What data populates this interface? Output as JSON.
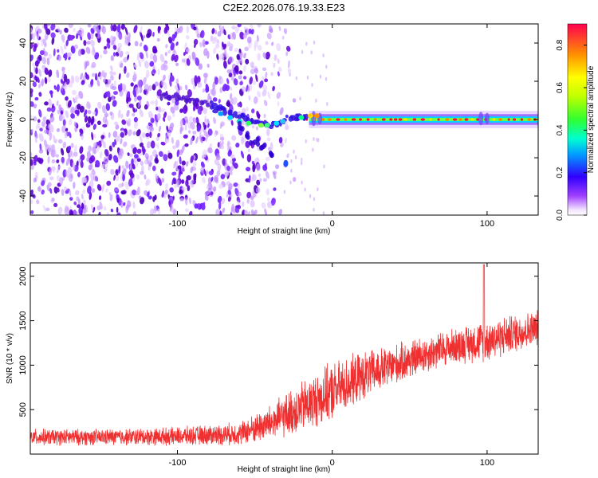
{
  "title": "C2E2.2026.076.19.33.E23",
  "colors": {
    "snr_line": "#f03030",
    "spectrogram_low": "#cc99ff",
    "spectrogram_mid": "#6600dd",
    "signal_peak": "#ff0040"
  },
  "chart_data": [
    {
      "type": "heatmap",
      "title": "C2E2.2026.076.19.33.E23",
      "xlabel": "Height of straight line (km)",
      "ylabel": "Frequency (Hz)",
      "xlim": [
        -195,
        133
      ],
      "ylim": [
        -50,
        50
      ],
      "xticks": [
        -100,
        0,
        100
      ],
      "yticks": [
        -40,
        -20,
        0,
        20,
        40
      ],
      "colorbar": {
        "label": "Normalized spectral amplitude",
        "range": [
          0,
          0.9
        ],
        "ticks": [
          0.0,
          0.2,
          0.4,
          0.6,
          0.8
        ],
        "tick_labels": [
          "0.0",
          "0.2",
          "0.4",
          "0.6",
          "0.8"
        ]
      },
      "features": {
        "noise_region_x": [
          -195,
          -32
        ],
        "noise_fade_x": [
          -60,
          -30
        ],
        "signal_track": {
          "x": [
            -110,
            -95,
            -85,
            -75,
            -65,
            -57,
            -50,
            -44,
            -40,
            -35,
            -30,
            -25,
            -20,
            -15,
            -10,
            0,
            20,
            50,
            90,
            133
          ],
          "frequency": [
            12,
            11,
            9,
            6,
            3,
            1,
            -1,
            -3,
            -3,
            -2,
            0,
            1,
            1,
            2,
            2,
            0,
            0,
            0,
            0,
            0
          ]
        },
        "secondary_branch": {
          "x": [
            -60,
            -55,
            -50,
            -45,
            -40
          ],
          "frequency": [
            -4,
            -8,
            -12,
            -14,
            -18
          ]
        },
        "isolated_blob": {
          "x": -30,
          "frequency": -23
        }
      }
    },
    {
      "type": "line",
      "xlabel": "Height of straight line (km)",
      "ylabel": "SNR (10 * v/v)",
      "xlim": [
        -195,
        133
      ],
      "ylim": [
        0,
        2150
      ],
      "xticks": [
        -100,
        0,
        100
      ],
      "yticks": [
        500,
        1000,
        1500,
        2000
      ],
      "series": [
        {
          "name": "SNR",
          "color": "#f03030",
          "trend_x": [
            -195,
            -150,
            -100,
            -60,
            -40,
            -20,
            0,
            20,
            40,
            60,
            80,
            100,
            133
          ],
          "trend_y": [
            190,
            190,
            200,
            230,
            350,
            520,
            700,
            880,
            1000,
            1120,
            1220,
            1280,
            1420
          ],
          "noise_amplitude": [
            100,
            100,
            110,
            140,
            220,
            320,
            360,
            300,
            250,
            230,
            220,
            260,
            220
          ],
          "peak": {
            "x": 98,
            "y": 2130
          }
        }
      ]
    }
  ]
}
